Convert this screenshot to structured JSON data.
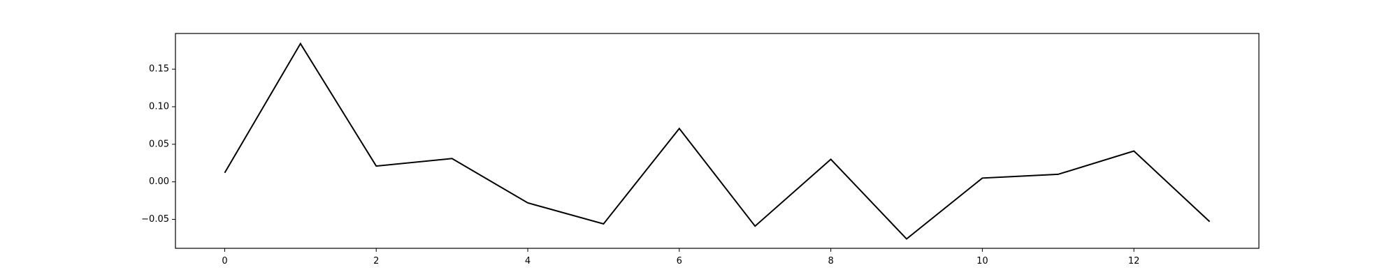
{
  "chart_data": {
    "type": "line",
    "title": "",
    "xlabel": "",
    "ylabel": "",
    "x": [
      0,
      1,
      2,
      3,
      4,
      5,
      6,
      7,
      8,
      9,
      10,
      11,
      12,
      13
    ],
    "series": [
      {
        "values": [
          0.012,
          0.184,
          0.021,
          0.031,
          -0.028,
          -0.056,
          0.071,
          -0.059,
          0.03,
          -0.076,
          0.005,
          0.01,
          0.041,
          -0.053
        ]
      }
    ],
    "xlim": [
      -0.65,
      13.65
    ],
    "ylim": [
      -0.0885,
      0.1975
    ],
    "xticks": [
      0,
      2,
      4,
      6,
      8,
      10,
      12
    ],
    "xtick_labels": [
      "0",
      "2",
      "4",
      "6",
      "8",
      "10",
      "12"
    ],
    "yticks": [
      -0.05,
      0.0,
      0.05,
      0.1,
      0.15
    ],
    "ytick_labels": [
      "−0.05",
      "0.00",
      "0.05",
      "0.10",
      "0.15"
    ],
    "grid": false,
    "legend": "none",
    "colors": {
      "line": "#000000",
      "axes": "#000000",
      "background": "#ffffff"
    }
  }
}
